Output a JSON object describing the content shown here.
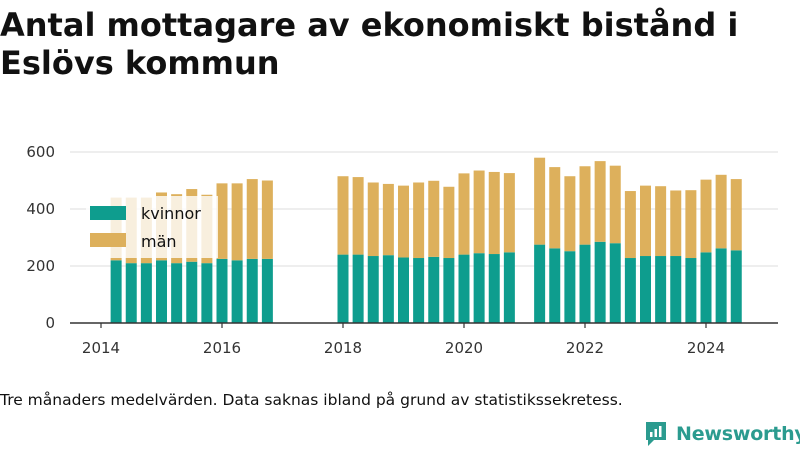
{
  "title": "Antal mottagare av ekonomiskt bistånd i Eslövs kommun",
  "note": "Tre månaders medelvärden. Data saknas ibland på grund av statistikssekretess.",
  "brand": {
    "name": "Newsworthy"
  },
  "colors": {
    "kvinnor": "#0e9d8e",
    "man": "#ddb05c",
    "grid": "#dddddd",
    "axis": "#333333",
    "brand": "#2b9b8f"
  },
  "chart_data": {
    "type": "bar",
    "stacked": true,
    "grid": true,
    "legend_position": "top-left",
    "x_ticks": [
      "2014",
      "2016",
      "2018",
      "2020",
      "2022",
      "2024"
    ],
    "y_ticks": [
      "0",
      "200",
      "400",
      "600"
    ],
    "ylim": [
      0,
      650
    ],
    "xlim": [
      2013.5,
      2025.2
    ],
    "x": [
      2014.25,
      2014.5,
      2014.75,
      2015.0,
      2015.25,
      2015.5,
      2015.75,
      2016.0,
      2016.25,
      2016.5,
      2016.75,
      2018.0,
      2018.25,
      2018.5,
      2018.75,
      2019.0,
      2019.25,
      2019.5,
      2019.75,
      2020.0,
      2020.25,
      2020.5,
      2020.75,
      2021.25,
      2021.5,
      2021.75,
      2022.0,
      2022.25,
      2022.5,
      2022.75,
      2023.0,
      2023.25,
      2023.5,
      2023.75,
      2024.0,
      2024.25,
      2024.5
    ],
    "series": [
      {
        "name": "kvinnor",
        "values": [
          220,
          210,
          210,
          220,
          210,
          215,
          210,
          225,
          220,
          225,
          225,
          240,
          240,
          235,
          238,
          230,
          228,
          232,
          228,
          240,
          245,
          242,
          248,
          275,
          262,
          252,
          275,
          285,
          280,
          228,
          235,
          235,
          235,
          228,
          248,
          262,
          255
        ]
      },
      {
        "name": "män",
        "values": [
          220,
          230,
          230,
          238,
          242,
          255,
          240,
          265,
          270,
          280,
          275,
          275,
          272,
          258,
          250,
          252,
          265,
          267,
          250,
          285,
          290,
          288,
          278,
          305,
          285,
          263,
          275,
          283,
          272,
          235,
          247,
          245,
          230,
          238,
          255,
          258,
          250
        ]
      }
    ]
  }
}
